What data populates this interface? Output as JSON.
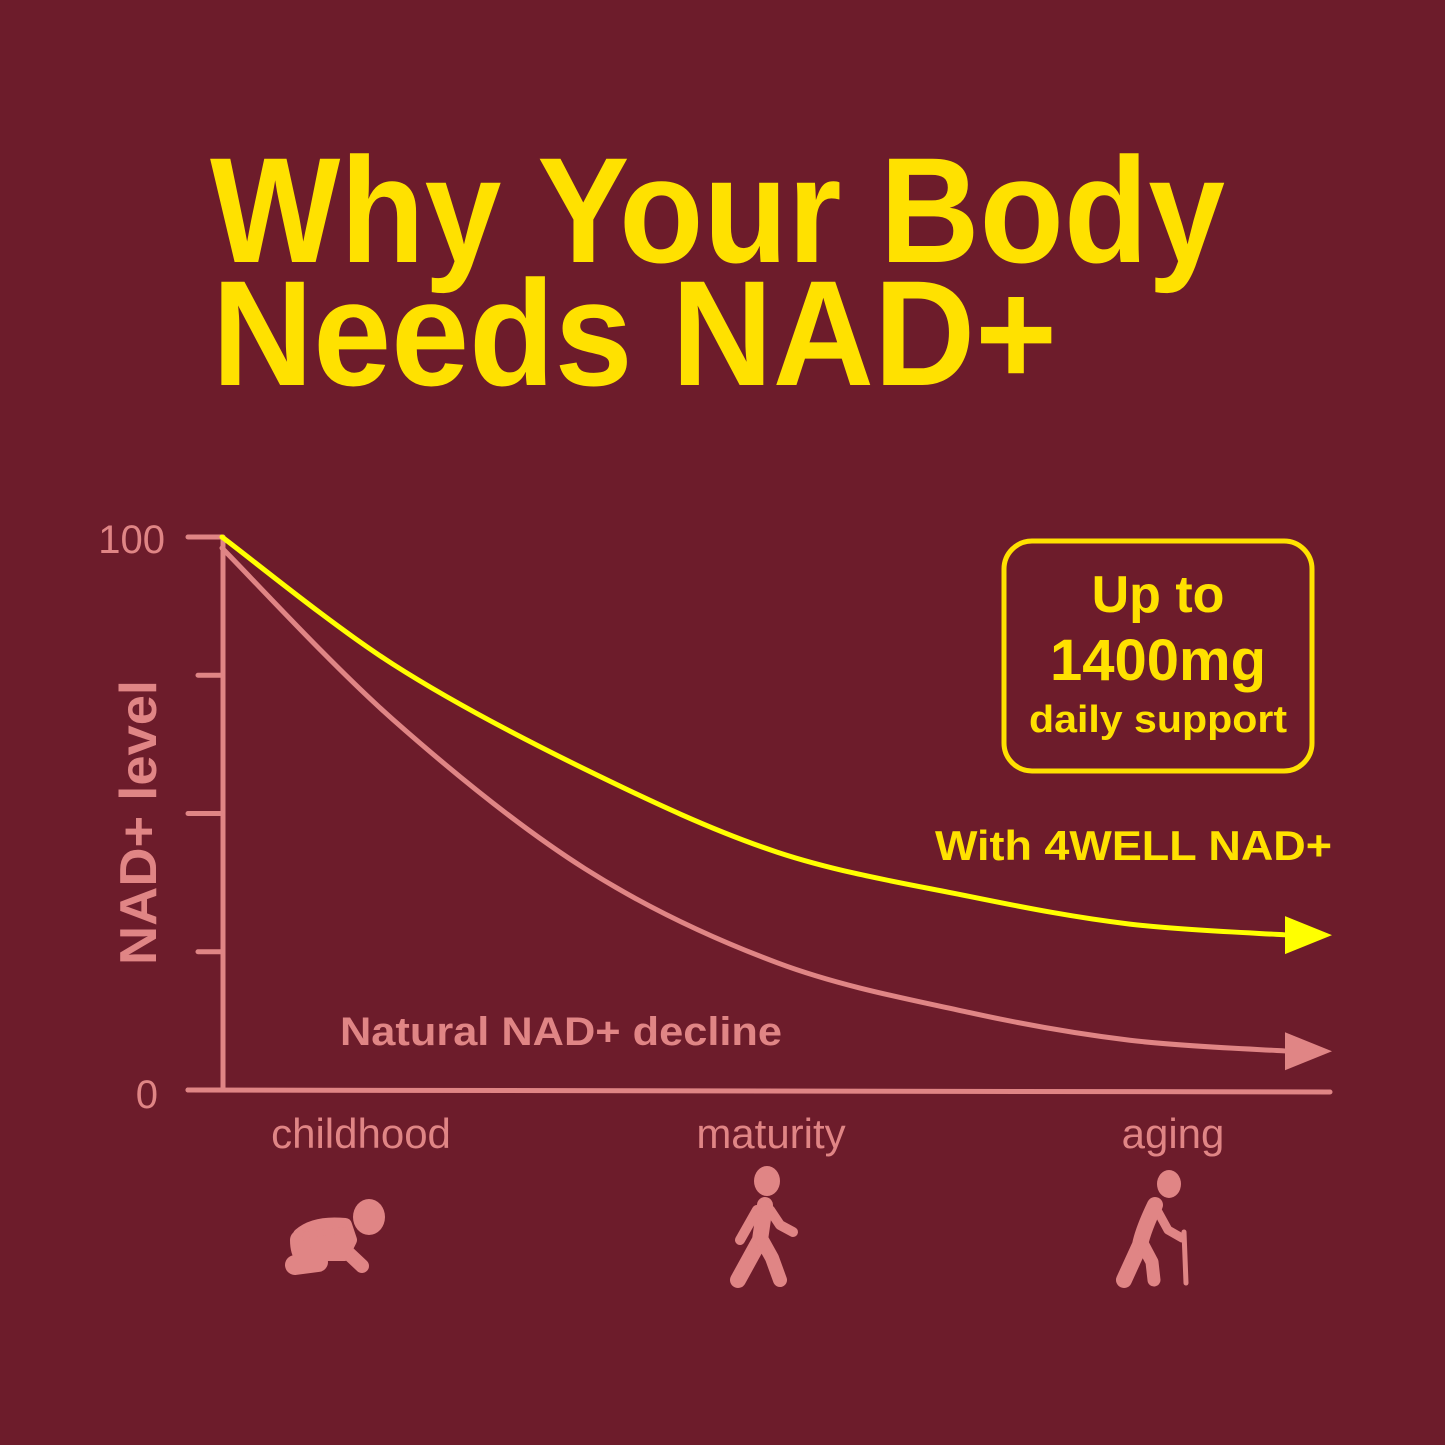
{
  "colors": {
    "background": "#6d1c2b",
    "title": "#ffe100",
    "axis": "#e08585",
    "supplemented_line": "#ffff00",
    "natural_line": "#e08585"
  },
  "title": {
    "line1": "Why Your Body",
    "line2": "Needs NAD+"
  },
  "badge": {
    "line1": "Up to",
    "line2": "1400mg",
    "line3": "daily support"
  },
  "chart_data": {
    "type": "line",
    "ylabel": "NAD+ level",
    "ylim": [
      0,
      100
    ],
    "yticks": [
      0,
      25,
      50,
      75,
      100
    ],
    "ytick_labels": [
      "0",
      "100"
    ],
    "xlim": [
      0,
      100
    ],
    "categories": [
      "childhood",
      "maturity",
      "aging"
    ],
    "category_icons": [
      "crawling-baby-icon",
      "walking-adult-icon",
      "elderly-cane-icon"
    ],
    "grid": false,
    "series": [
      {
        "name": "With 4WELL NAD+",
        "x": [
          0,
          16,
          34,
          52,
          70,
          85,
          100
        ],
        "y": [
          100,
          77,
          58,
          43,
          35,
          30,
          28
        ]
      },
      {
        "name": "Natural NAD+ decline",
        "x": [
          0,
          16,
          34,
          52,
          70,
          85,
          100
        ],
        "y": [
          98,
          67,
          40,
          23,
          14,
          9,
          7
        ]
      }
    ]
  }
}
